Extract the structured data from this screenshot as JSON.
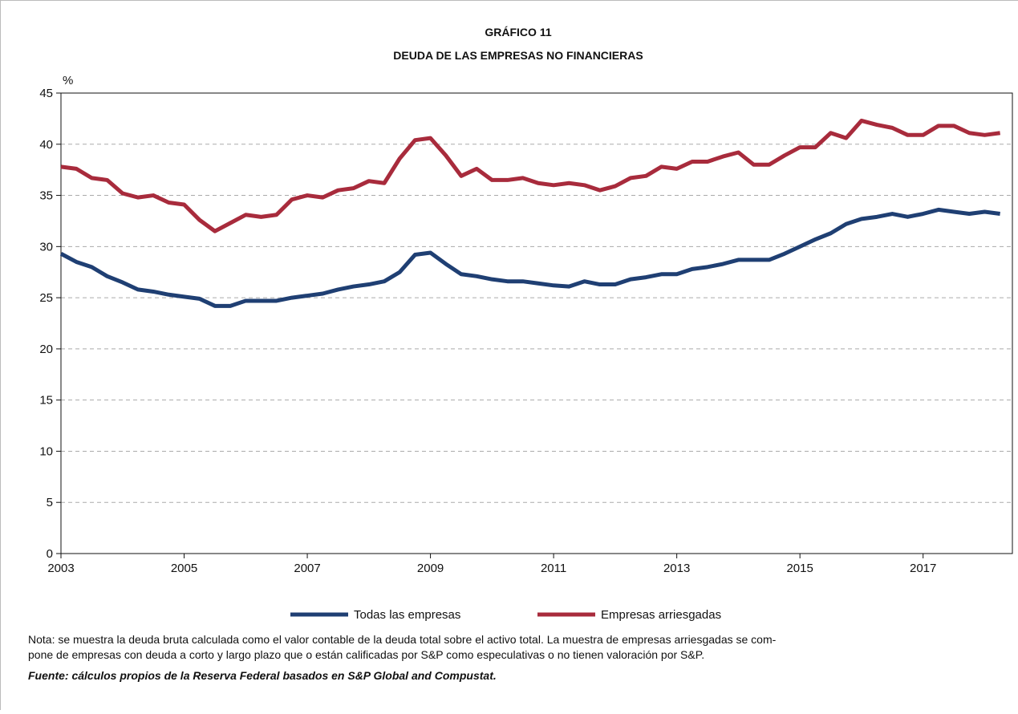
{
  "chart_data": {
    "type": "line",
    "title": [
      "GRÁFICO 11",
      "DEUDA DE LAS EMPRESAS NO FINANCIERAS"
    ],
    "y_label": "%",
    "x": [
      2003,
      2003.25,
      2003.5,
      2003.75,
      2004,
      2004.25,
      2004.5,
      2004.75,
      2005,
      2005.25,
      2005.5,
      2005.75,
      2006,
      2006.25,
      2006.5,
      2006.75,
      2007,
      2007.25,
      2007.5,
      2007.75,
      2008,
      2008.25,
      2008.5,
      2008.75,
      2009,
      2009.25,
      2009.5,
      2009.75,
      2010,
      2010.25,
      2010.5,
      2010.75,
      2011,
      2011.25,
      2011.5,
      2011.75,
      2012,
      2012.25,
      2012.5,
      2012.75,
      2013,
      2013.25,
      2013.5,
      2013.75,
      2014,
      2014.25,
      2014.5,
      2014.75,
      2015,
      2015.25,
      2015.5,
      2015.75,
      2016,
      2016.25,
      2016.5,
      2016.75,
      2017,
      2017.25,
      2017.5,
      2017.75,
      2018,
      2018.25
    ],
    "series": [
      {
        "name": "Todas las empresas",
        "color": "#1f3f73",
        "values": [
          29.3,
          28.5,
          28.0,
          27.1,
          26.5,
          25.8,
          25.6,
          25.3,
          25.1,
          24.9,
          24.2,
          24.2,
          24.7,
          24.7,
          24.7,
          25.0,
          25.2,
          25.4,
          25.8,
          26.1,
          26.3,
          26.6,
          27.5,
          29.2,
          29.4,
          28.3,
          27.3,
          27.1,
          26.8,
          26.6,
          26.6,
          26.4,
          26.2,
          26.1,
          26.6,
          26.3,
          26.3,
          26.8,
          27.0,
          27.3,
          27.3,
          27.8,
          28.0,
          28.3,
          28.7,
          28.7,
          28.7,
          29.3,
          30.0,
          30.7,
          31.3,
          32.2,
          32.7,
          32.9,
          33.2,
          32.9,
          33.2,
          33.6,
          33.4,
          33.2,
          33.4,
          33.2
        ]
      },
      {
        "name": "Empresas arriesgadas",
        "color": "#a82b3c",
        "values": [
          37.8,
          37.6,
          36.7,
          36.5,
          35.2,
          34.8,
          35.0,
          34.3,
          34.1,
          32.6,
          31.5,
          32.3,
          33.1,
          32.9,
          33.1,
          34.6,
          35.0,
          34.8,
          35.5,
          35.7,
          36.4,
          36.2,
          38.6,
          40.4,
          40.6,
          38.9,
          36.9,
          37.6,
          36.5,
          36.5,
          36.7,
          36.2,
          36.0,
          36.2,
          36.0,
          35.5,
          35.9,
          36.7,
          36.9,
          37.8,
          37.6,
          38.3,
          38.3,
          38.8,
          39.2,
          38.0,
          38.0,
          38.9,
          39.7,
          39.7,
          41.1,
          40.6,
          42.3,
          41.9,
          41.6,
          40.9,
          40.9,
          41.8,
          41.8,
          41.1,
          40.9,
          41.1
        ]
      }
    ],
    "xlim": [
      2003,
      2018.45
    ],
    "xticks": [
      2003,
      2005,
      2007,
      2009,
      2011,
      2013,
      2015,
      2017
    ],
    "ylim": [
      0,
      45
    ],
    "yticks": [
      0,
      5,
      10,
      15,
      20,
      25,
      30,
      35,
      40,
      45
    ],
    "grid": true,
    "note": [
      "Nota: se muestra la deuda bruta calculada como el valor contable de la deuda total sobre el activo total. La muestra de empresas arriesgadas se com-",
      "pone de empresas con deuda a corto y largo plazo que o están calificadas por S&P como especulativas o no tienen valoración por S&P."
    ],
    "source": "Fuente: cálculos propios de la Reserva Federal basados en S&P Global and Compustat."
  }
}
